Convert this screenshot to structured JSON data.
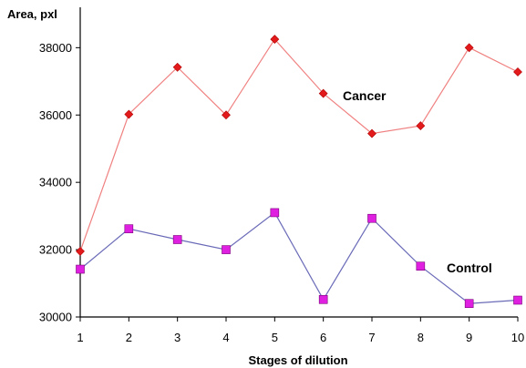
{
  "chart_data": {
    "type": "line",
    "title": "",
    "xlabel": "Stages of dilution",
    "ylabel": "Area, pxl",
    "x": [
      1,
      2,
      3,
      4,
      5,
      6,
      7,
      8,
      9,
      10
    ],
    "ylim": [
      30000,
      39200
    ],
    "y_ticks": [
      30000,
      32000,
      34000,
      36000,
      38000
    ],
    "grid": false,
    "legend": "none",
    "series": [
      {
        "name": "Cancer",
        "color": "#e31a1c",
        "line_color": "#f08080",
        "marker": "diamond",
        "values": [
          31950,
          36020,
          37420,
          36000,
          38250,
          36640,
          35450,
          35680,
          38000,
          37280
        ]
      },
      {
        "name": "Control",
        "color": "#e020e0",
        "line_color": "#6a6ab8",
        "marker": "square",
        "values": [
          31420,
          32620,
          32300,
          32000,
          33100,
          30520,
          32930,
          31510,
          30400,
          30500
        ]
      }
    ]
  }
}
